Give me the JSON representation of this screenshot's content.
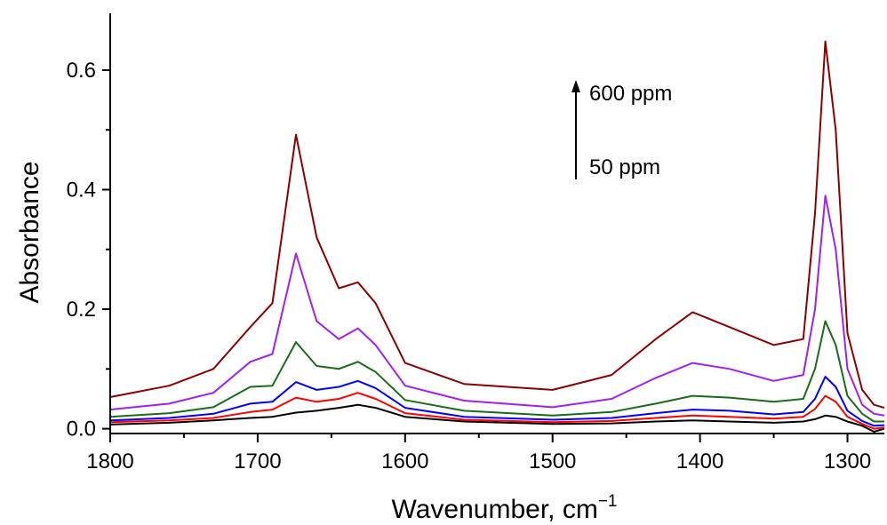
{
  "chart_data": {
    "type": "line",
    "title": "",
    "xlabel": "Wavenumber, cm",
    "xlabel_superscript": "−1",
    "ylabel": "Absorbance",
    "xlim": [
      1800,
      1275
    ],
    "x_reversed": true,
    "ylim": [
      -0.008,
      0.695
    ],
    "x_ticks": [
      1800,
      1700,
      1600,
      1500,
      1400,
      1300
    ],
    "x_tick_labels": [
      "1800",
      "1700",
      "1600",
      "1500",
      "1400",
      "1300"
    ],
    "y_ticks": [
      0.0,
      0.2,
      0.4,
      0.6
    ],
    "y_tick_labels": [
      "0.0",
      "0.2",
      "0.4",
      "0.6"
    ],
    "grid": false,
    "annotations": [
      {
        "text": "600 ppm"
      },
      {
        "text": "50 ppm"
      }
    ],
    "series": [
      {
        "color": "#000000",
        "x": [
          1800,
          1760,
          1730,
          1705,
          1690,
          1674,
          1660,
          1645,
          1632,
          1620,
          1600,
          1560,
          1500,
          1460,
          1430,
          1405,
          1380,
          1350,
          1330,
          1322,
          1315,
          1308,
          1300,
          1290,
          1282,
          1275
        ],
        "y": [
          0.007,
          0.01,
          0.014,
          0.018,
          0.02,
          0.027,
          0.03,
          0.035,
          0.04,
          0.035,
          0.02,
          0.012,
          0.008,
          0.009,
          0.012,
          0.014,
          0.012,
          0.01,
          0.012,
          0.016,
          0.022,
          0.02,
          0.012,
          0.005,
          -0.005,
          0.0
        ]
      },
      {
        "color": "#ff0000",
        "x": [
          1800,
          1760,
          1730,
          1705,
          1690,
          1674,
          1660,
          1645,
          1632,
          1620,
          1600,
          1560,
          1500,
          1460,
          1430,
          1405,
          1380,
          1350,
          1330,
          1322,
          1315,
          1308,
          1300,
          1290,
          1282,
          1275
        ],
        "y": [
          0.011,
          0.014,
          0.018,
          0.028,
          0.032,
          0.052,
          0.045,
          0.05,
          0.06,
          0.05,
          0.026,
          0.015,
          0.011,
          0.013,
          0.018,
          0.022,
          0.02,
          0.017,
          0.02,
          0.033,
          0.055,
          0.045,
          0.02,
          0.008,
          0.0,
          0.002
        ]
      },
      {
        "color": "#0000ff",
        "x": [
          1800,
          1760,
          1730,
          1705,
          1690,
          1674,
          1660,
          1645,
          1632,
          1620,
          1600,
          1560,
          1500,
          1460,
          1430,
          1405,
          1380,
          1350,
          1330,
          1322,
          1315,
          1308,
          1300,
          1290,
          1282,
          1275
        ],
        "y": [
          0.014,
          0.018,
          0.025,
          0.042,
          0.045,
          0.078,
          0.065,
          0.07,
          0.08,
          0.068,
          0.035,
          0.02,
          0.015,
          0.018,
          0.026,
          0.032,
          0.03,
          0.024,
          0.028,
          0.05,
          0.087,
          0.07,
          0.03,
          0.013,
          0.005,
          0.006
        ]
      },
      {
        "color": "#1a6b1a",
        "x": [
          1800,
          1760,
          1730,
          1705,
          1690,
          1674,
          1660,
          1645,
          1632,
          1620,
          1600,
          1560,
          1500,
          1460,
          1430,
          1405,
          1380,
          1350,
          1330,
          1322,
          1315,
          1308,
          1300,
          1290,
          1282,
          1275
        ],
        "y": [
          0.02,
          0.026,
          0.036,
          0.07,
          0.072,
          0.145,
          0.105,
          0.1,
          0.112,
          0.095,
          0.048,
          0.03,
          0.022,
          0.028,
          0.042,
          0.055,
          0.052,
          0.045,
          0.05,
          0.1,
          0.18,
          0.14,
          0.055,
          0.025,
          0.012,
          0.012
        ]
      },
      {
        "color": "#a020f0",
        "x": [
          1800,
          1760,
          1730,
          1705,
          1690,
          1674,
          1660,
          1645,
          1632,
          1620,
          1600,
          1560,
          1500,
          1460,
          1430,
          1405,
          1380,
          1350,
          1330,
          1322,
          1315,
          1308,
          1300,
          1290,
          1282,
          1275
        ],
        "y": [
          0.032,
          0.042,
          0.06,
          0.112,
          0.125,
          0.293,
          0.18,
          0.15,
          0.168,
          0.14,
          0.072,
          0.047,
          0.036,
          0.05,
          0.085,
          0.11,
          0.1,
          0.08,
          0.09,
          0.2,
          0.39,
          0.3,
          0.1,
          0.04,
          0.025,
          0.022
        ]
      },
      {
        "color": "#8b0000",
        "x": [
          1800,
          1760,
          1730,
          1705,
          1690,
          1674,
          1660,
          1645,
          1632,
          1620,
          1600,
          1560,
          1500,
          1460,
          1430,
          1405,
          1380,
          1350,
          1330,
          1322,
          1315,
          1308,
          1300,
          1290,
          1282,
          1275
        ],
        "y": [
          0.053,
          0.072,
          0.1,
          0.17,
          0.21,
          0.492,
          0.32,
          0.235,
          0.245,
          0.21,
          0.11,
          0.075,
          0.065,
          0.09,
          0.15,
          0.195,
          0.17,
          0.14,
          0.15,
          0.36,
          0.648,
          0.5,
          0.16,
          0.065,
          0.04,
          0.035
        ]
      }
    ]
  }
}
